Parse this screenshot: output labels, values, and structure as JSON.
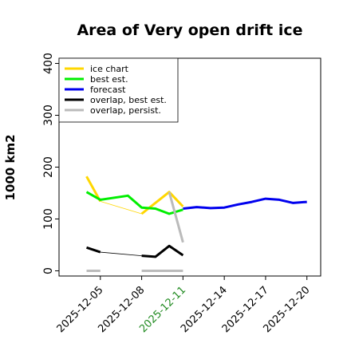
{
  "chart_data": {
    "type": "line",
    "title": "Area of Very open drift ice",
    "ylabel": "1000 km2",
    "xlabel": "",
    "xlim": [
      "2025-12-02",
      "2025-12-21"
    ],
    "ylim": [
      -10,
      410
    ],
    "yticks": [
      0,
      100,
      200,
      300,
      400
    ],
    "xticks": [
      "2025-12-05",
      "2025-12-08",
      "2025-12-11",
      "2025-12-14",
      "2025-12-17",
      "2025-12-20"
    ],
    "xtick_colors": [
      "#000000",
      "#000000",
      "#228B22",
      "#000000",
      "#000000",
      "#000000"
    ],
    "grid": false,
    "legend": {
      "position": "top-left",
      "entries": [
        {
          "label": "ice chart",
          "color": "#FFD700"
        },
        {
          "label": "best est.",
          "color": "#00EE00"
        },
        {
          "label": "forecast",
          "color": "#0000EE"
        },
        {
          "label": "overlap, best est.",
          "color": "#000000"
        },
        {
          "label": "overlap, persist.",
          "color": "#BBBBBB"
        }
      ]
    },
    "series": [
      {
        "name": "ice chart",
        "color": "#FFD700",
        "segments": [
          {
            "width": 3,
            "points": [
              [
                "2025-12-04",
                182
              ],
              [
                "2025-12-05",
                134
              ]
            ]
          },
          {
            "width": 0.8,
            "points": [
              [
                "2025-12-05",
                134
              ],
              [
                "2025-12-08",
                110
              ]
            ]
          },
          {
            "width": 3,
            "points": [
              [
                "2025-12-08",
                110
              ],
              [
                "2025-12-10",
                152
              ],
              [
                "2025-12-11",
                124
              ]
            ]
          }
        ]
      },
      {
        "name": "best est.",
        "color": "#00EE00",
        "segments": [
          {
            "width": 3,
            "points": [
              [
                "2025-12-04",
                152
              ],
              [
                "2025-12-05",
                137
              ],
              [
                "2025-12-07",
                145
              ],
              [
                "2025-12-08",
                122
              ],
              [
                "2025-12-09",
                120
              ],
              [
                "2025-12-10",
                110
              ],
              [
                "2025-12-11",
                118
              ]
            ]
          }
        ]
      },
      {
        "name": "forecast",
        "color": "#0000EE",
        "segments": [
          {
            "width": 3,
            "points": [
              [
                "2025-12-11",
                120
              ],
              [
                "2025-12-12",
                123
              ],
              [
                "2025-12-13",
                121
              ],
              [
                "2025-12-14",
                122
              ],
              [
                "2025-12-15",
                128
              ],
              [
                "2025-12-16",
                133
              ],
              [
                "2025-12-17",
                139
              ],
              [
                "2025-12-18",
                137
              ],
              [
                "2025-12-19",
                131
              ],
              [
                "2025-12-20",
                133
              ]
            ]
          }
        ]
      },
      {
        "name": "overlap, best est.",
        "color": "#000000",
        "segments": [
          {
            "width": 3,
            "points": [
              [
                "2025-12-04",
                45
              ],
              [
                "2025-12-05",
                36
              ]
            ]
          },
          {
            "width": 0.8,
            "points": [
              [
                "2025-12-05",
                36
              ],
              [
                "2025-12-08",
                29
              ]
            ]
          },
          {
            "width": 3,
            "points": [
              [
                "2025-12-08",
                29
              ],
              [
                "2025-12-09",
                27
              ],
              [
                "2025-12-10",
                48
              ],
              [
                "2025-12-11",
                30
              ]
            ]
          }
        ]
      },
      {
        "name": "overlap, persist.",
        "color": "#BBBBBB",
        "segments": [
          {
            "width": 3,
            "points": [
              [
                "2025-12-04",
                0
              ],
              [
                "2025-12-05",
                0
              ]
            ]
          },
          {
            "width": 3,
            "points": [
              [
                "2025-12-08",
                0
              ],
              [
                "2025-12-11",
                0
              ]
            ]
          },
          {
            "width": 3,
            "points": [
              [
                "2025-12-10",
                152
              ],
              [
                "2025-12-11",
                55
              ]
            ]
          }
        ]
      }
    ]
  }
}
